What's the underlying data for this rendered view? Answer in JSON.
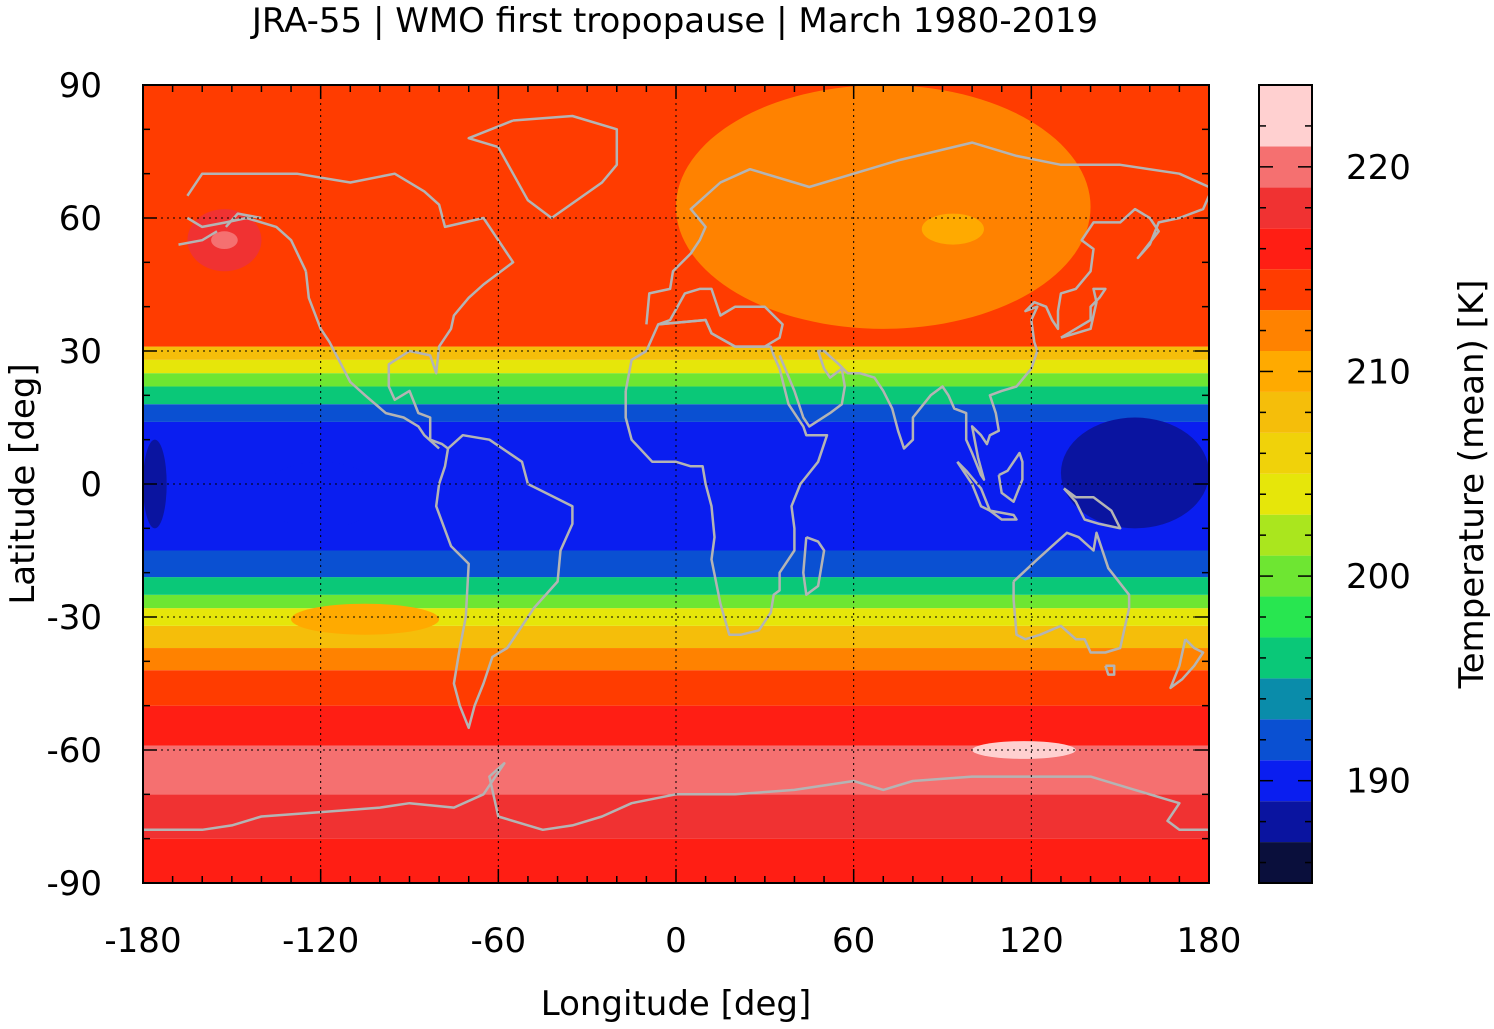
{
  "title": "JRA-55 | WMO first tropopause | March 1980-2019",
  "map": {
    "x_label": "Longitude [deg]",
    "y_label": "Latitude [deg]",
    "x_range": [
      -180,
      180
    ],
    "y_range": [
      -90,
      90
    ],
    "x_ticks": [
      "-180",
      "-120",
      "-60",
      "0",
      "60",
      "120",
      "180"
    ],
    "y_ticks": [
      "90",
      "60",
      "30",
      "0",
      "-30",
      "-60",
      "-90"
    ],
    "x_tick_values": [
      -180,
      -120,
      -60,
      0,
      60,
      120,
      180
    ],
    "y_tick_values": [
      90,
      60,
      30,
      0,
      -30,
      -60,
      -90
    ],
    "grid": "dotted",
    "coastlines_color": "#b4b4b4"
  },
  "colorbar": {
    "label": "Temperature (mean) [K]",
    "range": [
      185,
      224
    ],
    "tick_labels": [
      "220",
      "210",
      "200",
      "190"
    ],
    "tick_values": [
      220,
      210,
      200,
      190
    ],
    "levels_bottom_to_top": [
      {
        "min": 185,
        "color": "#0a0f3c"
      },
      {
        "min": 187,
        "color": "#0a14a0"
      },
      {
        "min": 189,
        "color": "#0a1ef0"
      },
      {
        "min": 191,
        "color": "#0a50d2"
      },
      {
        "min": 193,
        "color": "#0a8caa"
      },
      {
        "min": 195,
        "color": "#0ac878"
      },
      {
        "min": 197,
        "color": "#28e650"
      },
      {
        "min": 199,
        "color": "#6ee632"
      },
      {
        "min": 201,
        "color": "#aae61e"
      },
      {
        "min": 203,
        "color": "#e6e60a"
      },
      {
        "min": 205,
        "color": "#f0d20a"
      },
      {
        "min": 207,
        "color": "#f5be0a"
      },
      {
        "min": 209,
        "color": "#ffaa00"
      },
      {
        "min": 211,
        "color": "#ff8200"
      },
      {
        "min": 213,
        "color": "#ff3c00"
      },
      {
        "min": 215,
        "color": "#ff1e14"
      },
      {
        "min": 217,
        "color": "#f03232"
      },
      {
        "min": 219,
        "color": "#f57070"
      },
      {
        "min": 221,
        "color": "#ffd0d0"
      }
    ]
  },
  "field_bands_lat_bottom_to_top": [
    {
      "lat_min": -90,
      "lat_max": -80,
      "value": 216
    },
    {
      "lat_min": -80,
      "lat_max": -70,
      "value": 218
    },
    {
      "lat_min": -70,
      "lat_max": -59,
      "value": 220
    },
    {
      "lat_min": -59,
      "lat_max": -50,
      "value": 216
    },
    {
      "lat_min": -50,
      "lat_max": -42,
      "value": 214
    },
    {
      "lat_min": -42,
      "lat_max": -37,
      "value": 212
    },
    {
      "lat_min": -37,
      "lat_max": -32,
      "value": 208
    },
    {
      "lat_min": -32,
      "lat_max": -28,
      "value": 204
    },
    {
      "lat_min": -28,
      "lat_max": -25,
      "value": 200
    },
    {
      "lat_min": -25,
      "lat_max": -21,
      "value": 196
    },
    {
      "lat_min": -21,
      "lat_max": -15,
      "value": 192
    },
    {
      "lat_min": -15,
      "lat_max": 14,
      "value": 190
    },
    {
      "lat_min": 14,
      "lat_max": 18,
      "value": 192
    },
    {
      "lat_min": 18,
      "lat_max": 22,
      "value": 196
    },
    {
      "lat_min": 22,
      "lat_max": 25,
      "value": 200
    },
    {
      "lat_min": 25,
      "lat_max": 28,
      "value": 204
    },
    {
      "lat_min": 28,
      "lat_max": 31,
      "value": 208
    },
    {
      "lat_min": 31,
      "lat_max": 90,
      "value": 214
    }
  ],
  "field_patches": [
    {
      "region": "eastern hemisphere, 30N-90N",
      "lon_min": 0,
      "lon_max": 140,
      "lat_min": 35,
      "lat_max": 90,
      "value": 212
    },
    {
      "region": "near 90E 58N",
      "lon_min": 83,
      "lon_max": 104,
      "lat_min": 54,
      "lat_max": 61,
      "value": 210
    },
    {
      "region": "near 155W 55N",
      "lon_min": -165,
      "lon_max": -140,
      "lat_min": 48,
      "lat_max": 62,
      "value": 218
    },
    {
      "region": "near 155W 55N core",
      "lon_min": -157,
      "lon_max": -148,
      "lat_min": 53,
      "lat_max": 57,
      "value": 220
    },
    {
      "region": "near 120W 5S",
      "lon_min": -140,
      "lon_max": -100,
      "lat_min": -10,
      "lat_max": 5,
      "value": 190
    },
    {
      "region": "near 140E 5N",
      "lon_min": 130,
      "lon_max": 180,
      "lat_min": -10,
      "lat_max": 15,
      "value": 188
    },
    {
      "region": "near 180 0",
      "lon_min": -180,
      "lon_max": -172,
      "lat_min": -10,
      "lat_max": 10,
      "value": 188
    },
    {
      "region": "near 120E 60S",
      "lon_min": 100,
      "lon_max": 135,
      "lat_min": -62,
      "lat_max": -58,
      "value": 222
    },
    {
      "region": "near 90W 30S",
      "lon_min": -130,
      "lon_max": -80,
      "lat_min": -34,
      "lat_max": -27,
      "value": 210
    }
  ]
}
